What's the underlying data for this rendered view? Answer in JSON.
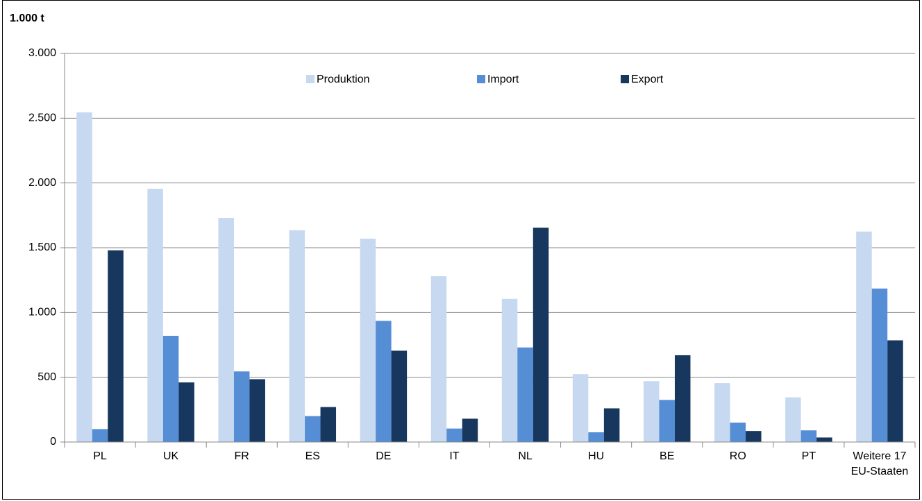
{
  "chart_data": {
    "type": "bar",
    "y_label": "1.000 t",
    "categories": [
      "PL",
      "UK",
      "FR",
      "ES",
      "DE",
      "IT",
      "NL",
      "HU",
      "BE",
      "RO",
      "PT",
      "Weitere 17\nEU-Staaten"
    ],
    "series": [
      {
        "name": "Produktion",
        "color": "#c6d9f1",
        "values": [
          2545,
          1955,
          1730,
          1635,
          1570,
          1280,
          1105,
          524,
          470,
          455,
          345,
          1625
        ]
      },
      {
        "name": "Import",
        "color": "#558ed5",
        "values": [
          100,
          820,
          545,
          200,
          935,
          104,
          730,
          75,
          325,
          150,
          90,
          1185
        ]
      },
      {
        "name": "Export",
        "color": "#17375e",
        "values": [
          1480,
          460,
          485,
          270,
          705,
          180,
          1655,
          260,
          670,
          85,
          35,
          785
        ]
      }
    ],
    "ylim": [
      0,
      3000
    ],
    "yticks": [
      0,
      500,
      {
        "value": 1000,
        "label": "1.000"
      },
      {
        "value": 1500,
        "label": "1.500"
      },
      {
        "value": 2000,
        "label": "2.000"
      },
      {
        "value": 2500,
        "label": "2.500"
      },
      {
        "value": 3000,
        "label": "3.000"
      }
    ],
    "grid": true
  }
}
